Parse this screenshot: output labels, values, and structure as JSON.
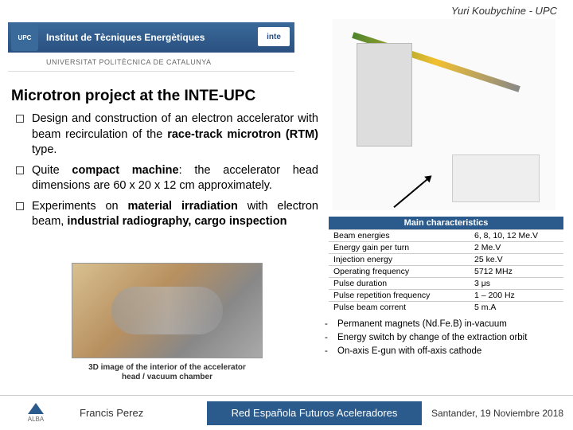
{
  "header": {
    "top_right": "Yuri Koubychine - UPC",
    "institute": "Institut de Tècniques Energètiques",
    "univ": "UNIVERSITAT POLITÈCNICA DE CATALUNYA",
    "upc": "UPC",
    "inte": "inte"
  },
  "title": "Microtron project at the INTE-UPC",
  "bullets": [
    {
      "html": "Design and construction of an electron accelerator with beam recirculation of the <b>race-track microtron (RTM)</b> type."
    },
    {
      "html": "Quite <b>compact machine</b>: the accelerator head dimensions are 60 x 20 x 12 cm approximately."
    },
    {
      "html": "Experiments on <b>material irradiation</b> with electron beam, <b>industrial radiography, cargo inspection</b>"
    }
  ],
  "caption_3d": "3D image of the interior of the accelerator head / vacuum chamber",
  "table": {
    "title": "Main characteristics",
    "rows": [
      [
        "Beam energies",
        "6, 8, 10, 12 Me.V"
      ],
      [
        "Energy gain per turn",
        "2 Me.V"
      ],
      [
        "Injection energy",
        "25 ke.V"
      ],
      [
        "Operating frequency",
        "5712 MHz"
      ],
      [
        "Pulse duration",
        "3 μs"
      ],
      [
        "Pulse repetition frequency",
        "1 – 200 Hz"
      ],
      [
        "Pulse beam corrent",
        "5 m.A"
      ]
    ]
  },
  "notes": [
    "Permanent magnets (Nd.Fe.B) in-vacuum",
    "Energy switch by change of the extraction orbit",
    "On-axis E-gun with off-axis cathode"
  ],
  "footer": {
    "alba": "ALBA",
    "author": "Francis Perez",
    "mid": "Red Española Futuros Aceleradores",
    "date": "Santander, 19 Noviembre 2018"
  }
}
